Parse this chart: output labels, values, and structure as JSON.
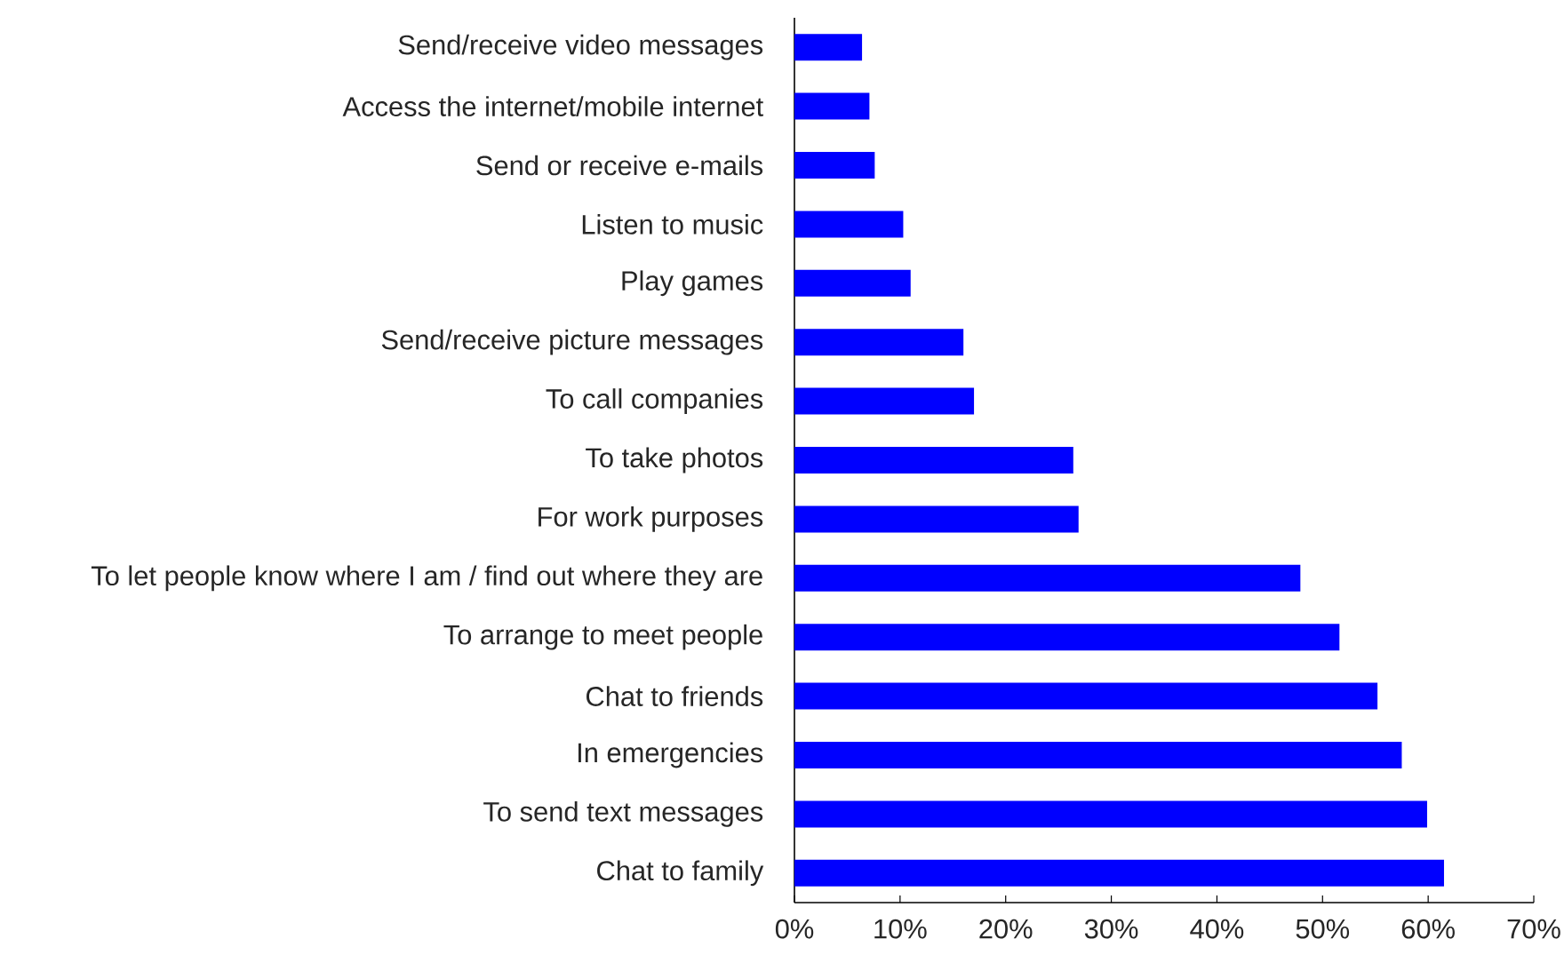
{
  "chart_data": {
    "type": "bar",
    "orientation": "horizontal",
    "categories": [
      "Send/receive video messages",
      "Access the internet/mobile internet",
      "Send or receive e-mails",
      "Listen to music",
      "Play games",
      "Send/receive picture messages",
      "To call companies",
      "To take photos",
      "For work purposes",
      "To let people know where I am / find out where they are",
      "To arrange to meet people",
      "Chat to friends",
      "In emergencies",
      "To send text messages",
      "Chat to family"
    ],
    "values": [
      6.4,
      7.1,
      7.6,
      10.3,
      11.0,
      16.0,
      17.0,
      26.4,
      26.9,
      47.9,
      51.6,
      55.2,
      57.5,
      59.9,
      61.5
    ],
    "color": "#0000ff",
    "xlim": [
      0,
      70
    ],
    "xticks": [
      {
        "value": 0,
        "label": "0%"
      },
      {
        "value": 10,
        "label": "10%"
      },
      {
        "value": 20,
        "label": "20%"
      },
      {
        "value": 30,
        "label": "30%"
      },
      {
        "value": 40,
        "label": "40%"
      },
      {
        "value": 50,
        "label": "50%"
      },
      {
        "value": 60,
        "label": "60%"
      },
      {
        "value": 70,
        "label": "70%"
      }
    ]
  }
}
